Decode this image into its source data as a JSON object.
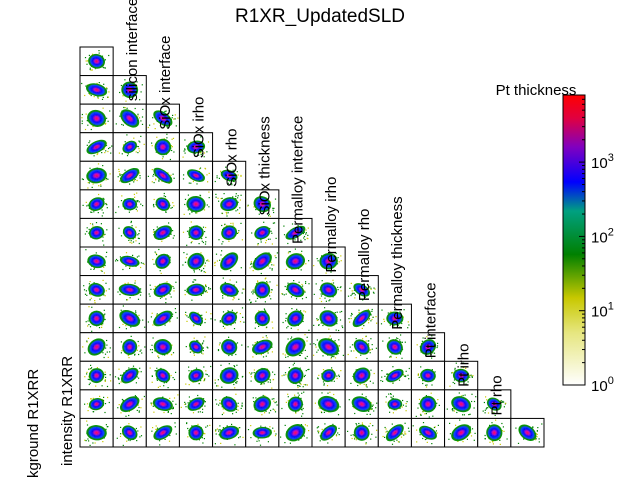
{
  "chart_data": {
    "type": "heatmap",
    "subtype": "corner-plot",
    "title": "R1XR_UpdatedSLD",
    "parameters": [
      "kground R1XRR",
      "intensity R1XRR",
      "silicon interface",
      "SiOx interface",
      "SiOx irho",
      "SiOx rho",
      "SiOx thickness",
      "Permalloy interface",
      "Permalloy irho",
      "Permalloy rho",
      "Permalloy thickness",
      "Pt interface",
      "Pt irho",
      "Pt rho",
      "Pt thickness"
    ],
    "grid_size": 14,
    "colorbar": {
      "scale": "log",
      "range": [
        1,
        8000
      ],
      "ticks": [
        {
          "value": 1,
          "base": "10",
          "exp": "0"
        },
        {
          "value": 10,
          "base": "10",
          "exp": "1"
        },
        {
          "value": 100,
          "base": "10",
          "exp": "2"
        },
        {
          "value": 1000,
          "base": "10",
          "exp": "3"
        }
      ]
    },
    "colors": {
      "frame": "#000000",
      "palette": [
        "#ffffff",
        "#c8c800",
        "#008000",
        "#0000ff",
        "#d00040",
        "#ff0000"
      ]
    }
  }
}
